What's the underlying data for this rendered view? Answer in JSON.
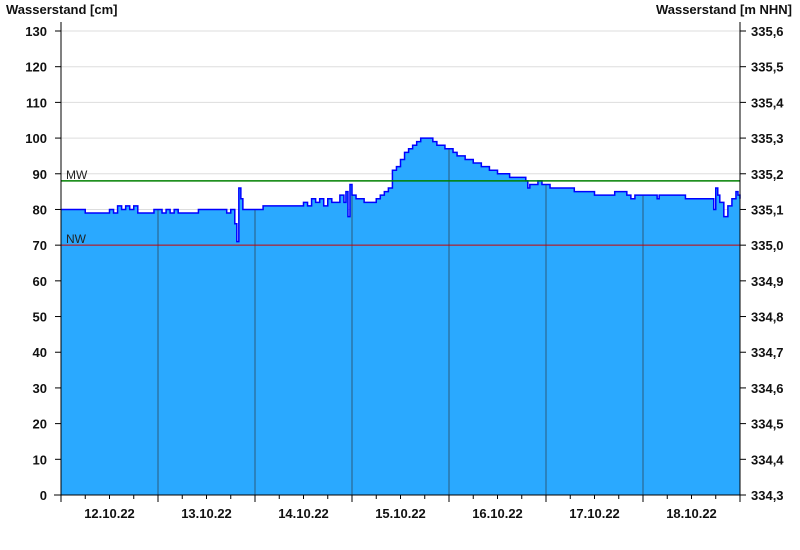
{
  "chart_data": {
    "type": "area",
    "title_left": "Wasserstand [cm]",
    "title_right": "Wasserstand [m NHN]",
    "ylim": [
      0,
      130
    ],
    "yticks": [
      0,
      10,
      20,
      30,
      40,
      50,
      60,
      70,
      80,
      90,
      100,
      110,
      120,
      130
    ],
    "yticks_right": [
      "334,3",
      "334,4",
      "334,5",
      "334,6",
      "334,7",
      "334,8",
      "334,9",
      "335,0",
      "335,1",
      "335,2",
      "335,3",
      "335,4",
      "335,5",
      "335,6"
    ],
    "xlim": [
      "12.10.22 00:00",
      "19.10.22 00:00"
    ],
    "xtick_labels": [
      "12.10.22",
      "13.10.22",
      "14.10.22",
      "15.10.22",
      "16.10.22",
      "17.10.22",
      "18.10.22"
    ],
    "grid": true,
    "reference_lines": [
      {
        "label": "MW",
        "value": 88,
        "color": "#008000"
      },
      {
        "label": "NW",
        "value": 70,
        "color": "#cc0000"
      }
    ],
    "colors": {
      "fill": "#2aa9ff",
      "line": "#0000ff",
      "day_lines": "#2b5b7d",
      "grid": "#dddddd"
    },
    "points": [
      [
        "12.10.22 00:00",
        80
      ],
      [
        "12.10.22 06:00",
        79
      ],
      [
        "12.10.22 12:00",
        80
      ],
      [
        "12.10.22 13:00",
        79
      ],
      [
        "12.10.22 14:00",
        81
      ],
      [
        "12.10.22 15:00",
        80
      ],
      [
        "12.10.22 16:00",
        81
      ],
      [
        "12.10.22 17:00",
        80
      ],
      [
        "12.10.22 18:00",
        81
      ],
      [
        "12.10.22 19:00",
        79
      ],
      [
        "12.10.22 23:00",
        80
      ],
      [
        "13.10.22 01:00",
        79
      ],
      [
        "13.10.22 02:00",
        80
      ],
      [
        "13.10.22 03:00",
        79
      ],
      [
        "13.10.22 04:00",
        80
      ],
      [
        "13.10.22 05:00",
        79
      ],
      [
        "13.10.22 10:00",
        80
      ],
      [
        "13.10.22 17:00",
        79
      ],
      [
        "13.10.22 18:00",
        80
      ],
      [
        "13.10.22 19:00",
        76
      ],
      [
        "13.10.22 19:30",
        71
      ],
      [
        "13.10.22 20:00",
        86
      ],
      [
        "13.10.22 20:30",
        83
      ],
      [
        "13.10.22 21:00",
        80
      ],
      [
        "14.10.22 02:00",
        81
      ],
      [
        "14.10.22 12:00",
        82
      ],
      [
        "14.10.22 13:00",
        81
      ],
      [
        "14.10.22 14:00",
        83
      ],
      [
        "14.10.22 15:00",
        82
      ],
      [
        "14.10.22 16:00",
        83
      ],
      [
        "14.10.22 17:00",
        81
      ],
      [
        "14.10.22 18:00",
        83
      ],
      [
        "14.10.22 19:00",
        82
      ],
      [
        "14.10.22 21:00",
        84
      ],
      [
        "14.10.22 22:00",
        82
      ],
      [
        "14.10.22 22:30",
        85
      ],
      [
        "14.10.22 23:00",
        78
      ],
      [
        "14.10.22 23:30",
        87
      ],
      [
        "15.10.22 00:00",
        84
      ],
      [
        "15.10.22 01:00",
        83
      ],
      [
        "15.10.22 03:00",
        82
      ],
      [
        "15.10.22 06:00",
        83
      ],
      [
        "15.10.22 07:00",
        84
      ],
      [
        "15.10.22 08:00",
        85
      ],
      [
        "15.10.22 09:00",
        86
      ],
      [
        "15.10.22 10:00",
        91
      ],
      [
        "15.10.22 11:00",
        92
      ],
      [
        "15.10.22 12:00",
        94
      ],
      [
        "15.10.22 13:00",
        96
      ],
      [
        "15.10.22 14:00",
        97
      ],
      [
        "15.10.22 15:00",
        98
      ],
      [
        "15.10.22 16:00",
        99
      ],
      [
        "15.10.22 17:00",
        100
      ],
      [
        "15.10.22 20:00",
        99
      ],
      [
        "15.10.22 21:00",
        98
      ],
      [
        "15.10.22 23:00",
        97
      ],
      [
        "16.10.22 01:00",
        96
      ],
      [
        "16.10.22 02:00",
        95
      ],
      [
        "16.10.22 04:00",
        94
      ],
      [
        "16.10.22 06:00",
        93
      ],
      [
        "16.10.22 08:00",
        92
      ],
      [
        "16.10.22 10:00",
        91
      ],
      [
        "16.10.22 12:00",
        90
      ],
      [
        "16.10.22 15:00",
        89
      ],
      [
        "16.10.22 19:00",
        88
      ],
      [
        "16.10.22 19:30",
        86
      ],
      [
        "16.10.22 20:00",
        87
      ],
      [
        "16.10.22 22:00",
        88
      ],
      [
        "16.10.22 23:00",
        87
      ],
      [
        "17.10.22 01:00",
        86
      ],
      [
        "17.10.22 07:00",
        85
      ],
      [
        "17.10.22 12:00",
        84
      ],
      [
        "17.10.22 17:00",
        85
      ],
      [
        "17.10.22 20:00",
        84
      ],
      [
        "17.10.22 21:00",
        83
      ],
      [
        "17.10.22 22:00",
        84
      ],
      [
        "18.10.22 03:30",
        83
      ],
      [
        "18.10.22 04:00",
        84
      ],
      [
        "18.10.22 10:30",
        83
      ],
      [
        "18.10.22 17:30",
        80
      ],
      [
        "18.10.22 18:00",
        86
      ],
      [
        "18.10.22 18:30",
        84
      ],
      [
        "18.10.22 19:00",
        82
      ],
      [
        "18.10.22 20:00",
        78
      ],
      [
        "18.10.22 21:00",
        81
      ],
      [
        "18.10.22 22:00",
        83
      ],
      [
        "18.10.22 23:00",
        85
      ],
      [
        "18.10.22 23:30",
        84
      ],
      [
        "19.10.22 00:00",
        83
      ]
    ]
  }
}
